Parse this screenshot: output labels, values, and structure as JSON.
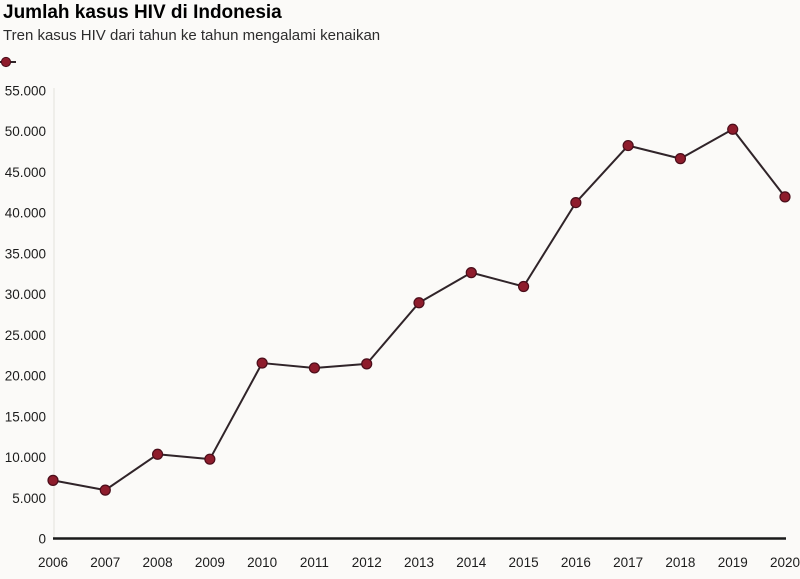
{
  "header": {
    "title": "Jumlah kasus HIV di Indonesia",
    "subtitle": "Tren kasus HIV dari tahun ke tahun mengalami kenaikan"
  },
  "legend": {
    "position": "top-left",
    "marker": "line-with-dot",
    "label": ""
  },
  "chart_data": {
    "type": "line",
    "title": "Jumlah kasus HIV di Indonesia",
    "subtitle": "Tren kasus HIV dari tahun ke tahun mengalami kenaikan",
    "x": [
      2006,
      2007,
      2008,
      2009,
      2010,
      2011,
      2012,
      2013,
      2014,
      2015,
      2016,
      2017,
      2018,
      2019,
      2020
    ],
    "x_tick_labels": [
      "2006",
      "2007",
      "2008",
      "2009",
      "2010",
      "2011",
      "2012",
      "2013",
      "2014",
      "2015",
      "2016",
      "2017",
      "2018",
      "2019",
      "2020"
    ],
    "values": [
      7200,
      6000,
      10400,
      9800,
      21600,
      21000,
      21500,
      29000,
      32700,
      31000,
      41300,
      48300,
      46700,
      50300,
      42000
    ],
    "xlabel": "",
    "ylabel": "",
    "ylim": [
      0,
      55000
    ],
    "y_ticks": [
      0,
      5000,
      10000,
      15000,
      20000,
      25000,
      30000,
      35000,
      40000,
      45000,
      50000,
      55000
    ],
    "y_tick_labels": [
      "0",
      "5.000",
      "10.000",
      "15.000",
      "20.000",
      "25.000",
      "30.000",
      "35.000",
      "40.000",
      "45.000",
      "50.000",
      "55.000"
    ],
    "grid": false,
    "legend_position": "top-left",
    "colors": {
      "marker": "#8e1c2c",
      "marker_edge": "#4a0d1a",
      "line": "#302429",
      "axis": "#1a1a1a",
      "y_axis_line": "#efeeea",
      "tick_text": "#1c1c1c"
    }
  }
}
